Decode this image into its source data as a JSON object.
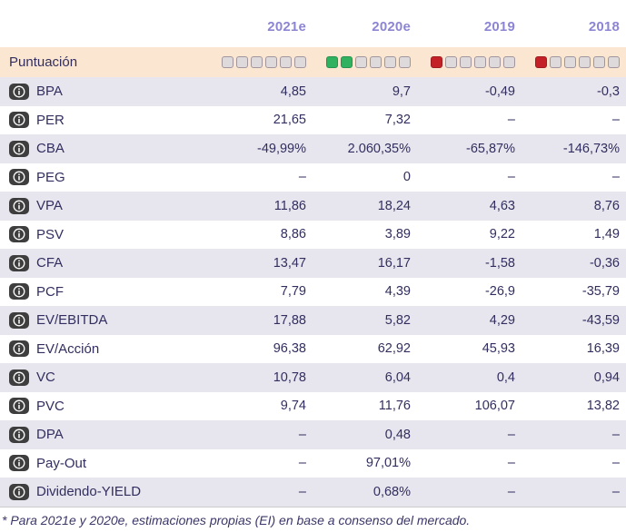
{
  "table": {
    "columns": [
      "2021e",
      "2020e",
      "2019",
      "2018"
    ],
    "score_row": {
      "label": "Puntuación",
      "scores": [
        {
          "total": 6,
          "filled": 0,
          "color": "empty"
        },
        {
          "total": 6,
          "filled": 2,
          "color": "green"
        },
        {
          "total": 6,
          "filled": 1,
          "color": "red"
        },
        {
          "total": 6,
          "filled": 1,
          "color": "red"
        }
      ]
    },
    "rows": [
      {
        "label": "BPA",
        "values": [
          "4,85",
          "9,7",
          "-0,49",
          "-0,3"
        ]
      },
      {
        "label": "PER",
        "values": [
          "21,65",
          "7,32",
          "–",
          "–"
        ]
      },
      {
        "label": "CBA",
        "values": [
          "-49,99%",
          "2.060,35%",
          "-65,87%",
          "-146,73%"
        ]
      },
      {
        "label": "PEG",
        "values": [
          "–",
          "0",
          "–",
          "–"
        ]
      },
      {
        "label": "VPA",
        "values": [
          "11,86",
          "18,24",
          "4,63",
          "8,76"
        ]
      },
      {
        "label": "PSV",
        "values": [
          "8,86",
          "3,89",
          "9,22",
          "1,49"
        ]
      },
      {
        "label": "CFA",
        "values": [
          "13,47",
          "16,17",
          "-1,58",
          "-0,36"
        ]
      },
      {
        "label": "PCF",
        "values": [
          "7,79",
          "4,39",
          "-26,9",
          "-35,79"
        ]
      },
      {
        "label": "EV/EBITDA",
        "values": [
          "17,88",
          "5,82",
          "4,29",
          "-43,59"
        ]
      },
      {
        "label": "EV/Acción",
        "values": [
          "96,38",
          "62,92",
          "45,93",
          "16,39"
        ]
      },
      {
        "label": "VC",
        "values": [
          "10,78",
          "6,04",
          "0,4",
          "0,94"
        ]
      },
      {
        "label": "PVC",
        "values": [
          "9,74",
          "11,76",
          "106,07",
          "13,82"
        ]
      },
      {
        "label": "DPA",
        "values": [
          "–",
          "0,48",
          "–",
          "–"
        ]
      },
      {
        "label": "Pay-Out",
        "values": [
          "–",
          "97,01%",
          "–",
          "–"
        ]
      },
      {
        "label": "Dividendo-YIELD",
        "values": [
          "–",
          "0,68%",
          "–",
          "–"
        ]
      }
    ],
    "footnote": "* Para 2021e y 2020e, estimaciones propias (EI) en base a consenso del mercado."
  },
  "colors": {
    "header_text": "#8c85d4",
    "body_text": "#322e5f",
    "alt_row_bg": "#e7e6ee",
    "score_row_bg": "#fbe6d2",
    "square_green": "#2fb160",
    "square_red": "#c32127",
    "square_empty_fill": "#ded9db",
    "square_empty_border": "#a1969d",
    "info_icon_bg": "#3e3e3e"
  }
}
